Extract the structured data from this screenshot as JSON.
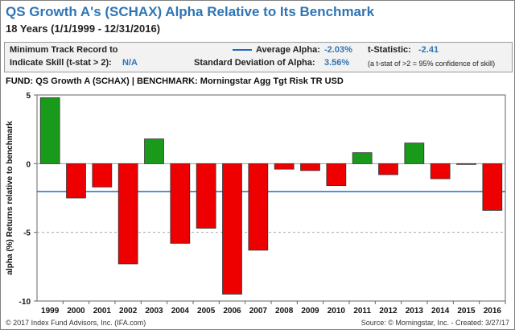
{
  "title": "QS Growth A's (SCHAX) Alpha Relative to Its Benchmark",
  "subtitle": "18 Years (1/1/1999 - 12/31/2016)",
  "stats": {
    "min_track_label_1": "Minimum Track Record to",
    "min_track_label_2": "Indicate Skill (t-stat > 2):",
    "min_track_value": "N/A",
    "avg_alpha_label": "Average Alpha:",
    "avg_alpha_value": "-2.03%",
    "tstat_label": "t-Statistic:",
    "tstat_value": "-2.41",
    "std_label": "Standard Deviation of Alpha:",
    "std_value": "3.56%",
    "note": "(a t-stat of >2 = 95% confidence of skill)"
  },
  "fund_line": "FUND: QS Growth A (SCHAX)  | BENCHMARK: Morningstar Agg Tgt Risk TR USD",
  "footer_left": "© 2017 Index Fund Advisors, Inc. (IFA.com)",
  "footer_right": "Source: © Morningstar, Inc. - Created: 3/27/17",
  "colors": {
    "positive": "#1a9a1a",
    "negative": "#ee0000",
    "avg_line": "#1f6bc2",
    "title": "#2f75b5"
  },
  "chart_data": {
    "type": "bar",
    "categories": [
      "1999",
      "2000",
      "2001",
      "2002",
      "2003",
      "2004",
      "2005",
      "2006",
      "2007",
      "2008",
      "2009",
      "2010",
      "2011",
      "2012",
      "2013",
      "2014",
      "2015",
      "2016"
    ],
    "values": [
      4.8,
      -2.5,
      -1.7,
      -7.3,
      1.8,
      -5.8,
      -4.7,
      -9.5,
      -6.3,
      -0.4,
      -0.5,
      -1.6,
      0.8,
      -0.8,
      1.5,
      -1.1,
      -0.05,
      -3.4
    ],
    "ylabel": "alpha (%) Returns relative to benchmark",
    "ylim": [
      -10,
      5
    ],
    "yticks": [
      5,
      0,
      -5,
      -10
    ],
    "reference_lines": [
      {
        "name": "Average Alpha",
        "value": -2.03,
        "style": "solid"
      },
      {
        "value": -5,
        "style": "dashed"
      }
    ]
  }
}
